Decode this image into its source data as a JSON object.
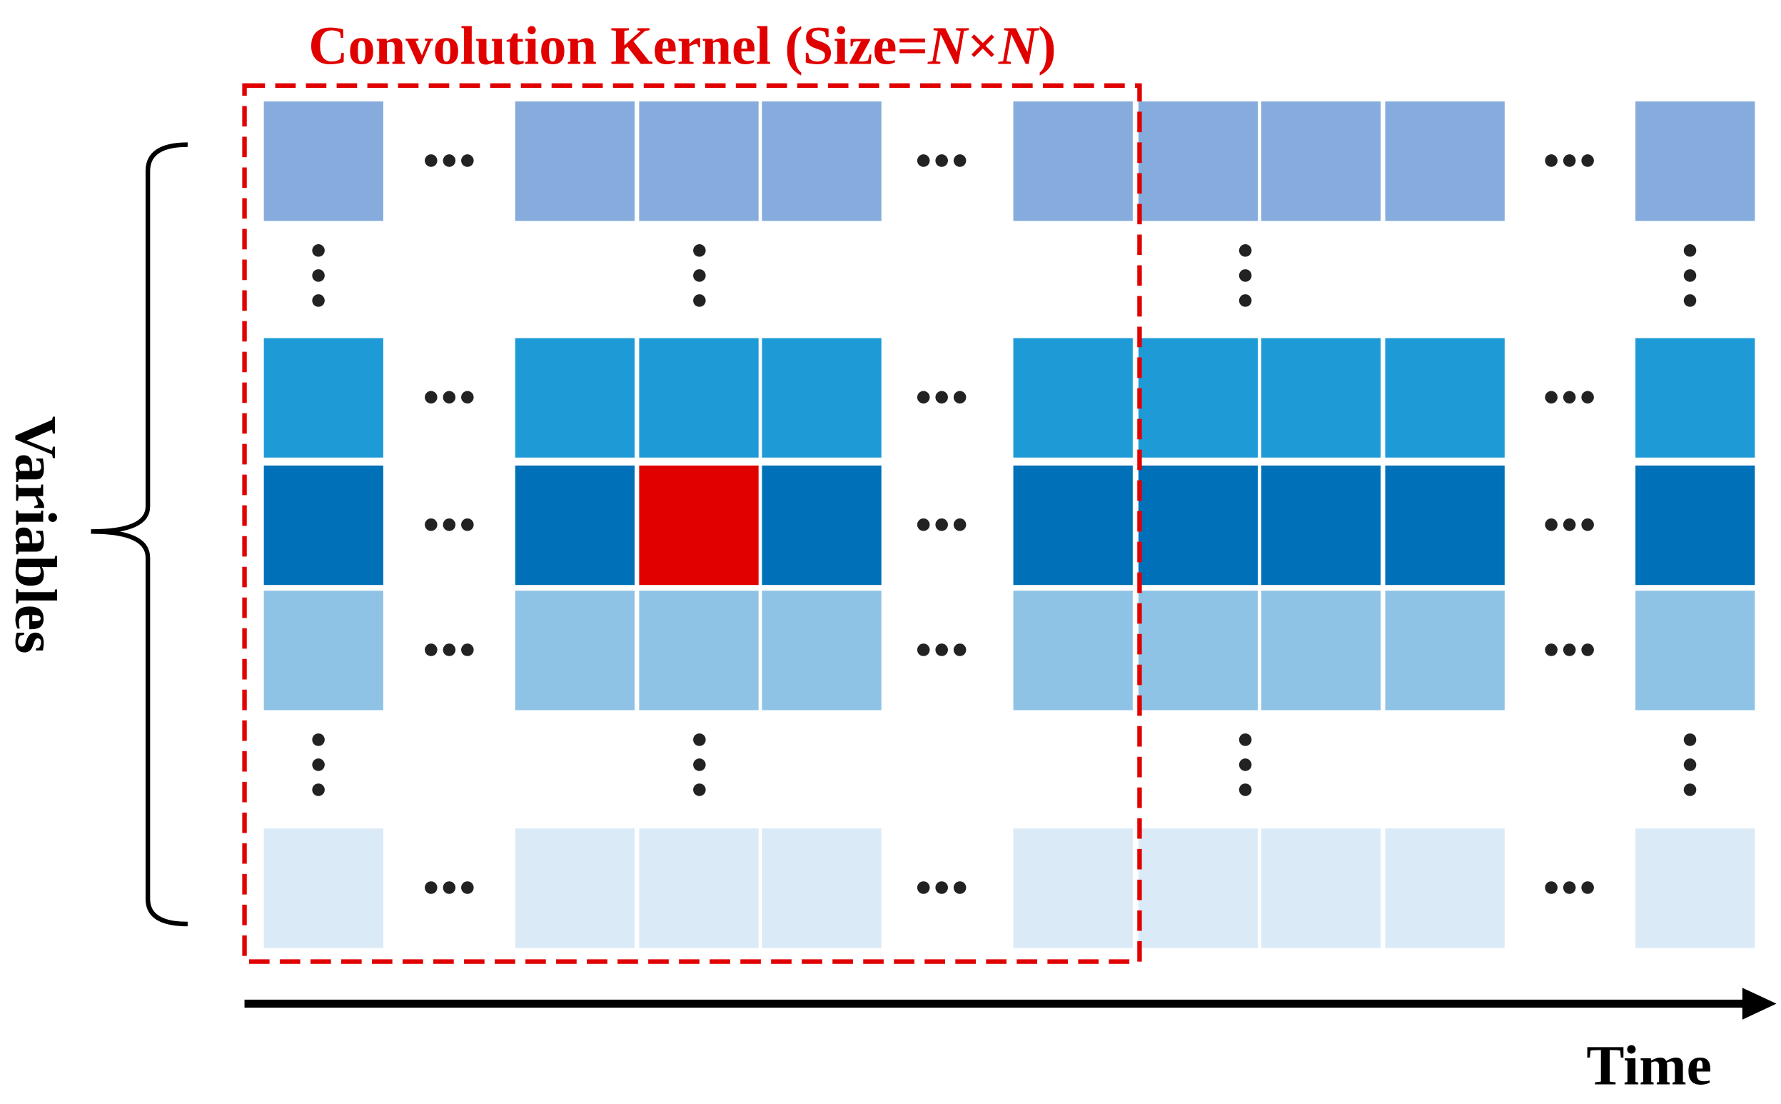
{
  "title": {
    "prefix": "Convolution Kernel (Size=",
    "n1": "N",
    "times": "×",
    "n2": "N",
    "suffix": ")"
  },
  "y_label": "Variables",
  "x_label": "Time"
}
